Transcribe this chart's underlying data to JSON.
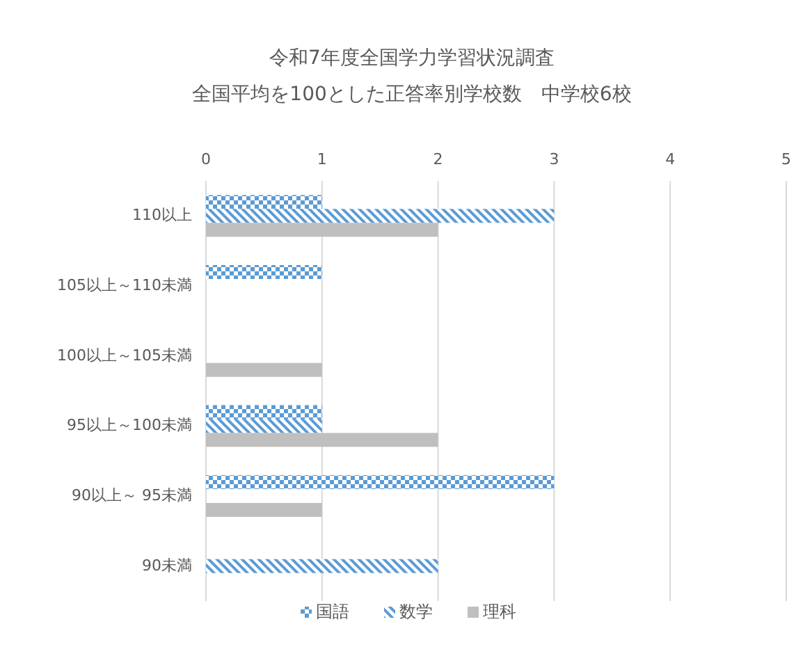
{
  "chart_data": {
    "type": "bar",
    "orientation": "horizontal",
    "title": "令和7年度全国学力学習状況調査",
    "subtitle": "全国平均を100とした正答率別学校数　中学校6校",
    "categories": [
      "110以上",
      "105以上～110未満",
      "100以上～105未満",
      "95以上～100未満",
      "90以上～ 95未満",
      "90未満"
    ],
    "series": [
      {
        "name": "国語",
        "color": "#5b9bd5",
        "values": [
          1,
          1,
          0,
          1,
          3,
          0
        ]
      },
      {
        "name": "数学",
        "color": "#5b9bd5",
        "values": [
          3,
          0,
          0,
          1,
          0,
          2
        ]
      },
      {
        "name": "理科",
        "color": "#bfbfbf",
        "values": [
          2,
          0,
          1,
          2,
          1,
          0
        ]
      }
    ],
    "xlim": [
      0,
      5
    ],
    "xticks": [
      0,
      1,
      2,
      3,
      4,
      5
    ],
    "grid": "x",
    "legend": "bottom"
  }
}
